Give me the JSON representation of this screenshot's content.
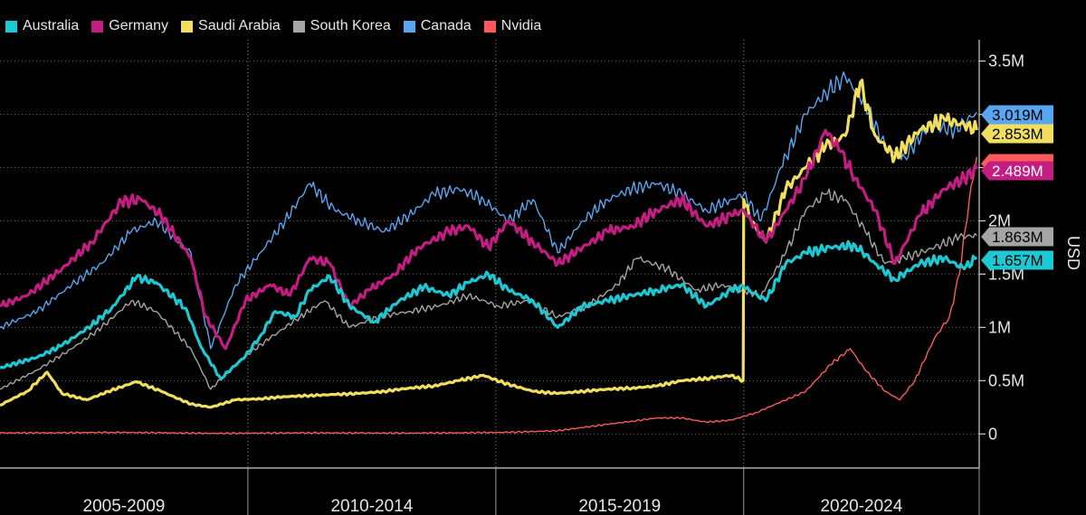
{
  "chart_data": {
    "type": "line",
    "title": "",
    "xlabel": "",
    "ylabel": "USD",
    "x_range": [
      2004.75,
      2024.5
    ],
    "ylim": [
      -320000,
      3700000
    ],
    "y_ticks": [
      {
        "value": 0,
        "label": "0"
      },
      {
        "value": 500000,
        "label": "0.5M"
      },
      {
        "value": 1000000,
        "label": "1M"
      },
      {
        "value": 1500000,
        "label": "1.5M"
      },
      {
        "value": 2000000,
        "label": "2M"
      },
      {
        "value": 3500000,
        "label": "3.5M"
      }
    ],
    "gridlines": [
      0,
      500000,
      1000000,
      1500000,
      2000000,
      2500000,
      3000000,
      3500000
    ],
    "periods": [
      {
        "label": "2005-2009",
        "start": 2004.75,
        "end": 2009.75
      },
      {
        "label": "2010-2014",
        "start": 2009.75,
        "end": 2014.75
      },
      {
        "label": "2015-2019",
        "start": 2014.75,
        "end": 2019.75
      },
      {
        "label": "2020-2024",
        "start": 2019.75,
        "end": 2024.5
      }
    ],
    "legend_position": "top-left",
    "series": [
      {
        "name": "Australia",
        "color": "#1ec8d2",
        "width": 3.2,
        "last_label": "1.657M",
        "last_value": 1657000,
        "x": [
          2004.75,
          2005.5,
          2006.0,
          2006.6,
          2007.0,
          2007.5,
          2007.9,
          2008.5,
          2008.8,
          2009.2,
          2009.7,
          2010.0,
          2010.3,
          2010.7,
          2011.0,
          2011.4,
          2011.8,
          2012.3,
          2012.8,
          2013.3,
          2013.8,
          2014.2,
          2014.6,
          2015.0,
          2015.5,
          2016.0,
          2016.5,
          2017.0,
          2017.5,
          2018.0,
          2018.5,
          2019.0,
          2019.5,
          2019.75,
          2020.2,
          2020.6,
          2021.0,
          2021.5,
          2022.0,
          2022.4,
          2022.8,
          2023.3,
          2023.8,
          2024.2,
          2024.45
        ],
        "y": [
          620000,
          720000,
          830000,
          1020000,
          1180000,
          1470000,
          1420000,
          1180000,
          820000,
          520000,
          730000,
          920000,
          1150000,
          1100000,
          1350000,
          1480000,
          1200000,
          1050000,
          1250000,
          1380000,
          1300000,
          1420000,
          1500000,
          1350000,
          1250000,
          1000000,
          1200000,
          1250000,
          1300000,
          1350000,
          1400000,
          1200000,
          1350000,
          1380000,
          1250000,
          1600000,
          1700000,
          1750000,
          1770000,
          1600000,
          1450000,
          1600000,
          1650000,
          1550000,
          1657000
        ]
      },
      {
        "name": "Germany",
        "color": "#c31d82",
        "width": 3.2,
        "last_label": "2.489M",
        "last_value": 2489000,
        "x": [
          2004.75,
          2005.3,
          2006.0,
          2006.6,
          2007.2,
          2007.6,
          2008.0,
          2008.6,
          2008.9,
          2009.3,
          2009.7,
          2010.2,
          2010.6,
          2011.0,
          2011.4,
          2011.8,
          2012.2,
          2012.7,
          2013.2,
          2013.8,
          2014.2,
          2014.6,
          2015.0,
          2015.5,
          2016.0,
          2016.5,
          2017.0,
          2017.5,
          2018.0,
          2018.5,
          2019.0,
          2019.5,
          2019.75,
          2020.2,
          2020.6,
          2021.0,
          2021.4,
          2021.7,
          2022.0,
          2022.4,
          2022.8,
          2023.3,
          2023.8,
          2024.2,
          2024.45
        ],
        "y": [
          1200000,
          1300000,
          1550000,
          1800000,
          2180000,
          2200000,
          2050000,
          1650000,
          1100000,
          800000,
          1250000,
          1400000,
          1300000,
          1650000,
          1600000,
          1200000,
          1350000,
          1500000,
          1750000,
          1900000,
          1950000,
          1750000,
          2000000,
          1800000,
          1600000,
          1750000,
          1900000,
          1950000,
          2100000,
          2200000,
          1950000,
          2050000,
          2100000,
          1800000,
          2100000,
          2400000,
          2850000,
          2650000,
          2400000,
          2100000,
          1600000,
          2050000,
          2300000,
          2400000,
          2489000
        ]
      },
      {
        "name": "Saudi Arabia",
        "color": "#f1de5e",
        "width": 3.2,
        "last_label": "2.853M",
        "last_value": 2853000,
        "x": [
          2004.75,
          2005.3,
          2005.7,
          2006.0,
          2006.5,
          2007.0,
          2007.5,
          2008.0,
          2008.6,
          2009.0,
          2009.5,
          2010.0,
          2010.5,
          2011.0,
          2011.5,
          2012.0,
          2012.5,
          2013.0,
          2013.5,
          2014.0,
          2014.5,
          2014.9,
          2015.5,
          2016.0,
          2016.5,
          2017.0,
          2017.5,
          2018.0,
          2018.5,
          2019.0,
          2019.5,
          2019.74,
          2019.75,
          2019.9,
          2020.2,
          2020.6,
          2021.0,
          2021.4,
          2021.8,
          2022.1,
          2022.4,
          2022.8,
          2023.3,
          2023.8,
          2024.2,
          2024.45
        ],
        "y": [
          270000,
          400000,
          580000,
          380000,
          320000,
          410000,
          490000,
          400000,
          280000,
          250000,
          320000,
          330000,
          350000,
          360000,
          370000,
          380000,
          400000,
          430000,
          450000,
          500000,
          550000,
          480000,
          400000,
          380000,
          400000,
          420000,
          430000,
          450000,
          500000,
          520000,
          550000,
          500000,
          2200000,
          2000000,
          1800000,
          2300000,
          2500000,
          2700000,
          2800000,
          3300000,
          2800000,
          2600000,
          2850000,
          2950000,
          2900000,
          2853000
        ]
      },
      {
        "name": "South Korea",
        "color": "#a5a5a5",
        "width": 1.4,
        "last_label": "1.863M",
        "last_value": 1863000,
        "x": [
          2004.75,
          2005.5,
          2006.2,
          2006.8,
          2007.4,
          2007.9,
          2008.6,
          2009.0,
          2009.6,
          2010.2,
          2010.8,
          2011.3,
          2011.8,
          2012.4,
          2013.0,
          2013.6,
          2014.2,
          2014.8,
          2015.4,
          2016.0,
          2016.6,
          2017.2,
          2017.6,
          2018.2,
          2018.8,
          2019.3,
          2019.75,
          2020.1,
          2020.6,
          2021.0,
          2021.4,
          2021.8,
          2022.2,
          2022.6,
          2023.0,
          2023.6,
          2024.1,
          2024.45
        ],
        "y": [
          420000,
          600000,
          800000,
          1000000,
          1250000,
          1150000,
          800000,
          420000,
          700000,
          900000,
          1100000,
          1250000,
          1000000,
          1100000,
          1150000,
          1200000,
          1300000,
          1200000,
          1250000,
          1100000,
          1200000,
          1400000,
          1650000,
          1550000,
          1350000,
          1400000,
          1350000,
          1300000,
          1700000,
          2100000,
          2250000,
          2200000,
          1900000,
          1600000,
          1650000,
          1750000,
          1850000,
          1863000
        ]
      },
      {
        "name": "Canada",
        "color": "#5aa5f0",
        "width": 1.4,
        "last_label": "3.019M",
        "last_value": 3019000,
        "x": [
          2004.75,
          2005.5,
          2006.2,
          2006.8,
          2007.4,
          2007.9,
          2008.6,
          2009.0,
          2009.5,
          2010.0,
          2010.5,
          2011.0,
          2011.5,
          2012.0,
          2012.5,
          2013.0,
          2013.5,
          2014.0,
          2014.5,
          2015.0,
          2015.5,
          2016.0,
          2016.5,
          2017.0,
          2017.5,
          2018.0,
          2018.5,
          2019.0,
          2019.5,
          2019.75,
          2020.1,
          2020.5,
          2021.0,
          2021.4,
          2021.8,
          2022.2,
          2022.6,
          2023.0,
          2023.5,
          2024.0,
          2024.45
        ],
        "y": [
          1000000,
          1150000,
          1400000,
          1600000,
          1900000,
          2000000,
          1700000,
          800000,
          1400000,
          1700000,
          2000000,
          2350000,
          2100000,
          2000000,
          1900000,
          2050000,
          2250000,
          2300000,
          2200000,
          2000000,
          2200000,
          1700000,
          2000000,
          2200000,
          2300000,
          2350000,
          2250000,
          2100000,
          2200000,
          2250000,
          2000000,
          2500000,
          3000000,
          3200000,
          3350000,
          3100000,
          2700000,
          2600000,
          2900000,
          2850000,
          3019000
        ]
      },
      {
        "name": "Nvidia",
        "color": "#ff5a5a",
        "width": 1.4,
        "last_label": "",
        "last_value": 2600000,
        "x": [
          2004.75,
          2006.0,
          2007.0,
          2008.0,
          2009.0,
          2010.0,
          2011.0,
          2012.0,
          2013.0,
          2014.0,
          2015.0,
          2016.0,
          2016.5,
          2017.0,
          2017.5,
          2018.0,
          2018.5,
          2019.0,
          2019.5,
          2020.0,
          2020.5,
          2021.0,
          2021.5,
          2021.9,
          2022.2,
          2022.6,
          2022.9,
          2023.2,
          2023.6,
          2023.9,
          2024.1,
          2024.3,
          2024.45
        ],
        "y": [
          10000,
          10000,
          15000,
          10000,
          5000,
          8000,
          10000,
          8000,
          8000,
          10000,
          15000,
          30000,
          60000,
          90000,
          120000,
          150000,
          150000,
          110000,
          130000,
          200000,
          300000,
          400000,
          650000,
          800000,
          600000,
          400000,
          320000,
          500000,
          900000,
          1100000,
          1500000,
          2200000,
          2600000
        ]
      }
    ]
  }
}
